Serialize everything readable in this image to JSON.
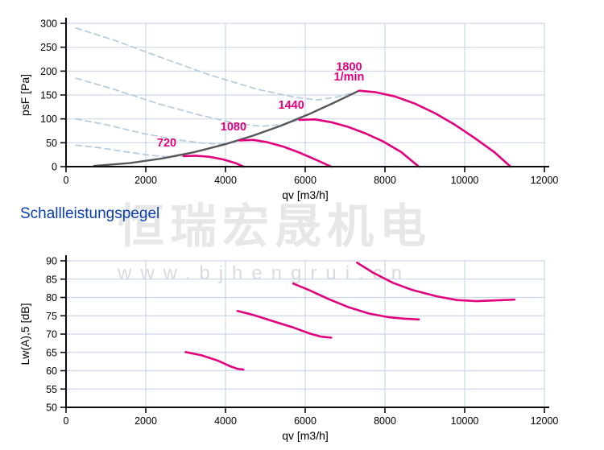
{
  "heading": {
    "text": "Schallleistungspegel"
  },
  "watermark": {
    "cjk": "恒瑞宏晟机电",
    "url": "www.bjhengrui.cn"
  },
  "colors": {
    "curve_pink": "#e2007d",
    "curve_gray": "#56575a",
    "dashed_blue": "#b9cdde",
    "grid": "#ccd7ea",
    "axis": "#0b0b0b",
    "heading_blue": "#0a3fae"
  },
  "chart_data": [
    {
      "type": "line",
      "title": "",
      "xlabel": "qv [m3/h]",
      "ylabel": "psF [Pa]",
      "xlim": [
        0,
        12000
      ],
      "ylim": [
        0,
        300
      ],
      "xticks": [
        0,
        2000,
        4000,
        6000,
        8000,
        10000,
        12000
      ],
      "yticks": [
        0,
        50,
        100,
        150,
        200,
        250,
        300
      ],
      "grid": true,
      "legend": "none",
      "series": [
        {
          "name": "720-dashed",
          "role": "fan-curve-unstable-region",
          "style": "dashed",
          "points": [
            [
              250,
              45
            ],
            [
              800,
              40
            ],
            [
              1500,
              31
            ],
            [
              2100,
              24
            ],
            [
              2550,
              20.5
            ],
            [
              2950,
              22
            ]
          ]
        },
        {
          "name": "1080-dashed",
          "role": "fan-curve-unstable-region",
          "style": "dashed",
          "points": [
            [
              250,
              100
            ],
            [
              1000,
              88
            ],
            [
              1900,
              70
            ],
            [
              2800,
              56
            ],
            [
              3500,
              48.5
            ],
            [
              3900,
              47
            ],
            [
              4350,
              55
            ]
          ]
        },
        {
          "name": "1440-dashed",
          "role": "fan-curve-unstable-region",
          "style": "dashed",
          "points": [
            [
              250,
              185
            ],
            [
              1200,
              162
            ],
            [
              2300,
              132
            ],
            [
              3400,
              107
            ],
            [
              4300,
              90
            ],
            [
              4900,
              84.5
            ],
            [
              5400,
              88
            ],
            [
              5850,
              98
            ]
          ]
        },
        {
          "name": "1800-dashed",
          "role": "fan-curve-unstable-region",
          "style": "dashed",
          "points": [
            [
              250,
              290
            ],
            [
              1200,
              265
            ],
            [
              2400,
              228
            ],
            [
              3600,
              192
            ],
            [
              4800,
              162
            ],
            [
              5700,
              146
            ],
            [
              6300,
              139.5
            ],
            [
              6800,
              146
            ],
            [
              7350,
              158
            ]
          ]
        },
        {
          "name": "operating-line",
          "role": "system-parabola",
          "style": "gray",
          "points": [
            [
              700,
              1.5
            ],
            [
              1600,
              7.5
            ],
            [
              2400,
              17
            ],
            [
              3200,
              30
            ],
            [
              4000,
              47
            ],
            [
              4700,
              65
            ],
            [
              5400,
              86
            ],
            [
              6100,
              110
            ],
            [
              6700,
              133
            ],
            [
              7350,
              159
            ]
          ]
        },
        {
          "name": "720",
          "role": "fan-curve 720 1/min",
          "style": "pink",
          "points": [
            [
              2950,
              22
            ],
            [
              3250,
              23
            ],
            [
              3600,
              20.5
            ],
            [
              3950,
              15
            ],
            [
              4250,
              7.5
            ],
            [
              4450,
              0
            ]
          ]
        },
        {
          "name": "1080",
          "role": "fan-curve 1080 1/min",
          "style": "pink",
          "points": [
            [
              4350,
              55
            ],
            [
              4700,
              56
            ],
            [
              5050,
              51
            ],
            [
              5450,
              42
            ],
            [
              5850,
              29.5
            ],
            [
              6250,
              15
            ],
            [
              6650,
              0
            ]
          ]
        },
        {
          "name": "1440",
          "role": "fan-curve 1440 1/min",
          "style": "pink",
          "points": [
            [
              5850,
              98
            ],
            [
              6250,
              99
            ],
            [
              6650,
              93
            ],
            [
              7050,
              84
            ],
            [
              7500,
              70
            ],
            [
              7950,
              53
            ],
            [
              8400,
              31
            ],
            [
              8850,
              0
            ]
          ]
        },
        {
          "name": "1800",
          "role": "fan-curve 1800 1/min",
          "style": "pink",
          "points": [
            [
              7350,
              159
            ],
            [
              7750,
              156
            ],
            [
              8250,
              147
            ],
            [
              8750,
              132
            ],
            [
              9250,
              112
            ],
            [
              9750,
              88
            ],
            [
              10250,
              60
            ],
            [
              10750,
              30
            ],
            [
              11150,
              0
            ]
          ]
        }
      ],
      "annotations": [
        {
          "text": "720",
          "x": 2525,
          "y": 42
        },
        {
          "text": "1080",
          "x": 4200,
          "y": 76
        },
        {
          "text": "1440",
          "x": 5650,
          "y": 121
        },
        {
          "text": "1800",
          "x": 7100,
          "y": 201
        },
        {
          "text": "1/min",
          "x": 7100,
          "y": 180
        }
      ]
    },
    {
      "type": "line",
      "title": "",
      "xlabel": "qv [m3/h]",
      "ylabel": "Lw(A),5 [dB]",
      "xlim": [
        0,
        12000
      ],
      "ylim": [
        50,
        90
      ],
      "xticks": [
        0,
        2000,
        4000,
        6000,
        8000,
        10000,
        12000
      ],
      "yticks": [
        50,
        55,
        60,
        65,
        70,
        75,
        80,
        85,
        90
      ],
      "grid": true,
      "legend": "none",
      "series": [
        {
          "name": "720-sound",
          "role": "sound-power 720 1/min",
          "style": "pink",
          "points": [
            [
              3000,
              65.1
            ],
            [
              3400,
              64.2
            ],
            [
              3800,
              62.8
            ],
            [
              4100,
              61.3
            ],
            [
              4300,
              60.5
            ],
            [
              4450,
              60.3
            ]
          ]
        },
        {
          "name": "1080-sound",
          "role": "sound-power 1080 1/min",
          "style": "pink",
          "points": [
            [
              4300,
              76.3
            ],
            [
              4700,
              75.2
            ],
            [
              5200,
              73.5
            ],
            [
              5700,
              71.8
            ],
            [
              6100,
              70.2
            ],
            [
              6400,
              69.3
            ],
            [
              6650,
              69.0
            ]
          ]
        },
        {
          "name": "1440-sound",
          "role": "sound-power 1440 1/min",
          "style": "pink",
          "points": [
            [
              5700,
              83.8
            ],
            [
              6100,
              82.0
            ],
            [
              6600,
              79.5
            ],
            [
              7100,
              77.3
            ],
            [
              7600,
              75.6
            ],
            [
              8100,
              74.6
            ],
            [
              8500,
              74.2
            ],
            [
              8850,
              74.0
            ]
          ]
        },
        {
          "name": "1800-sound",
          "role": "sound-power 1800 1/min",
          "style": "pink",
          "points": [
            [
              7300,
              89.5
            ],
            [
              7700,
              86.8
            ],
            [
              8200,
              84.0
            ],
            [
              8700,
              82.0
            ],
            [
              9300,
              80.3
            ],
            [
              9800,
              79.3
            ],
            [
              10300,
              79.0
            ],
            [
              10800,
              79.2
            ],
            [
              11250,
              79.4
            ]
          ]
        }
      ],
      "annotations": []
    }
  ]
}
